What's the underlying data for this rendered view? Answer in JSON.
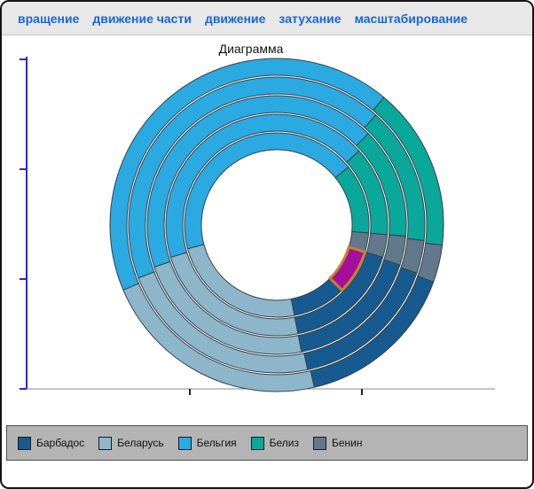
{
  "toolbar": {
    "items": [
      "вращение",
      "движение части",
      "движение",
      "затухание",
      "масштабирование"
    ]
  },
  "chart_data": {
    "type": "pie",
    "variant": "concentric-donut",
    "title": "Диаграмма",
    "unit": "degrees",
    "categories": [
      "Барбадос",
      "Беларусь",
      "Бельгия",
      "Белиз",
      "Бенин"
    ],
    "labels": {
      "barbados": "Барбадос",
      "belarus": "Беларусь",
      "belgium": "Бельгия",
      "belize": "Белиз",
      "benin": "Бенин"
    },
    "colors": {
      "barbados": "#175A90",
      "belarus": "#8EB6CB",
      "belgium": "#2BA9E1",
      "belize": "#0AA79B",
      "benin": "#61798A",
      "highlight": "#A50F9B"
    },
    "segment_stroke": "#37424A",
    "highlight_stroke": "#C8802F",
    "center": {
      "x": 310,
      "y": 214
    },
    "hole_radius": 85,
    "rings": [
      {
        "outer": 188,
        "inner": 169,
        "start": 247,
        "segments": [
          [
            "belgium",
            153
          ],
          [
            "belize",
            57
          ],
          [
            "benin",
            13
          ],
          [
            "barbados",
            57
          ],
          [
            "belarus",
            80
          ]
        ]
      },
      {
        "outer": 167,
        "inner": 148,
        "start": 249,
        "segments": [
          [
            "belgium",
            153
          ],
          [
            "belize",
            54
          ],
          [
            "benin",
            13
          ],
          [
            "barbados",
            59
          ],
          [
            "belarus",
            81
          ]
        ]
      },
      {
        "outer": 146,
        "inner": 127,
        "start": 251,
        "segments": [
          [
            "belgium",
            154
          ],
          [
            "belize",
            50
          ],
          [
            "benin",
            13
          ],
          [
            "barbados",
            61
          ],
          [
            "belarus",
            82
          ]
        ]
      },
      {
        "outer": 125,
        "inner": 106,
        "start": 253,
        "segments": [
          [
            "belgium",
            155
          ],
          [
            "belize",
            47
          ],
          [
            "benin",
            12
          ],
          [
            "barbados",
            62
          ],
          [
            "belarus",
            84
          ]
        ]
      },
      {
        "outer": 104,
        "inner": 85,
        "start": 255,
        "segments": [
          [
            "belgium",
            156
          ],
          [
            "belize",
            44
          ],
          [
            "benin",
            12
          ],
          [
            "highlight",
            28
          ],
          [
            "barbados",
            34
          ],
          [
            "belarus",
            86
          ]
        ]
      }
    ],
    "axes": {
      "y_color": "#2A2AD6",
      "x_color": "#8A8A8A",
      "tick_color": "#222222",
      "y_ticks": 4,
      "x_ticks": 2
    },
    "legend": {
      "position": "bottom",
      "items": [
        "barbados",
        "belarus",
        "belgium",
        "belize",
        "benin"
      ]
    }
  }
}
